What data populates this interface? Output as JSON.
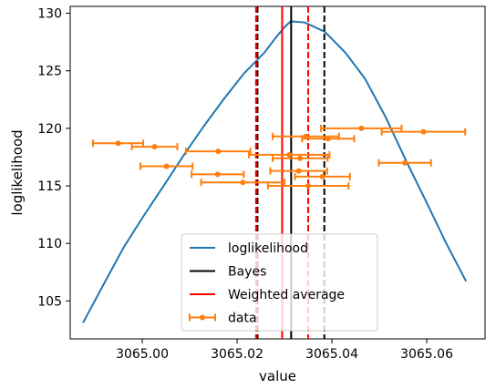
{
  "chart_data": {
    "type": "line",
    "xlabel": "value",
    "ylabel": "loglikelihood",
    "xlim": [
      3064.9848,
      3065.0723
    ],
    "ylim": [
      101.7,
      130.6
    ],
    "xticks": [
      3065.0,
      3065.02,
      3065.04,
      3065.06
    ],
    "xtick_labels": [
      "3065.00",
      "3065.02",
      "3065.04",
      "3065.06"
    ],
    "yticks": [
      105,
      110,
      115,
      120,
      125,
      130
    ],
    "ytick_labels": [
      "105",
      "110",
      "115",
      "120",
      "125",
      "130"
    ],
    "grid": false,
    "legend_position": "lower center",
    "legend": [
      {
        "label": "loglikelihood",
        "kind": "line",
        "color": "#1f77b4"
      },
      {
        "label": "Bayes",
        "kind": "line",
        "color": "#000000"
      },
      {
        "label": "Weighted average",
        "kind": "line",
        "color": "#ff0000"
      },
      {
        "label": "data",
        "kind": "errorbar",
        "color": "#ff7f0e"
      }
    ],
    "loglikelihood_curve": {
      "color": "#1f77b4",
      "x": [
        3064.9875,
        3064.9918,
        3064.996,
        3065.0003,
        3065.0045,
        3065.0088,
        3065.013,
        3065.0173,
        3065.0215,
        3065.0258,
        3065.028,
        3065.03,
        3065.0313,
        3065.0343,
        3065.0385,
        3065.0428,
        3065.047,
        3065.0513,
        3065.0555,
        3065.0598,
        3065.064,
        3065.0683
      ],
      "y": [
        103.1,
        106.4,
        109.6,
        112.4,
        115.0,
        117.7,
        120.2,
        122.6,
        124.8,
        126.6,
        127.8,
        128.8,
        129.3,
        129.2,
        128.4,
        126.6,
        124.3,
        121.0,
        117.3,
        113.7,
        110.1,
        106.7
      ]
    },
    "bayes": {
      "color": "#000000",
      "mean": 3065.0314,
      "lower": 3065.0243,
      "upper": 3065.0384
    },
    "weighted_average": {
      "color": "#ff0000",
      "mean": 3065.0295,
      "lower": 3065.024,
      "upper": 3065.035
    },
    "data": {
      "color": "#ff7f0e",
      "points": [
        {
          "x": 3064.9949,
          "y": 118.7,
          "xerr": 0.0053
        },
        {
          "x": 3065.0026,
          "y": 118.4,
          "xerr": 0.0048
        },
        {
          "x": 3065.016,
          "y": 118.0,
          "xerr": 0.0068
        },
        {
          "x": 3065.0051,
          "y": 116.7,
          "xerr": 0.0055
        },
        {
          "x": 3065.0159,
          "y": 116.0,
          "xerr": 0.0055
        },
        {
          "x": 3065.0212,
          "y": 115.3,
          "xerr": 0.0088
        },
        {
          "x": 3065.0462,
          "y": 120.0,
          "xerr": 0.0085
        },
        {
          "x": 3065.0593,
          "y": 119.7,
          "xerr": 0.0088
        },
        {
          "x": 3065.0345,
          "y": 119.3,
          "xerr": 0.007
        },
        {
          "x": 3065.0392,
          "y": 119.1,
          "xerr": 0.0055
        },
        {
          "x": 3065.031,
          "y": 117.7,
          "xerr": 0.0085
        },
        {
          "x": 3065.0333,
          "y": 117.4,
          "xerr": 0.0058
        },
        {
          "x": 3065.0554,
          "y": 117.0,
          "xerr": 0.0055
        },
        {
          "x": 3065.033,
          "y": 116.3,
          "xerr": 0.006
        },
        {
          "x": 3065.038,
          "y": 115.8,
          "xerr": 0.0058
        },
        {
          "x": 3065.035,
          "y": 115.0,
          "xerr": 0.0085
        }
      ]
    }
  }
}
